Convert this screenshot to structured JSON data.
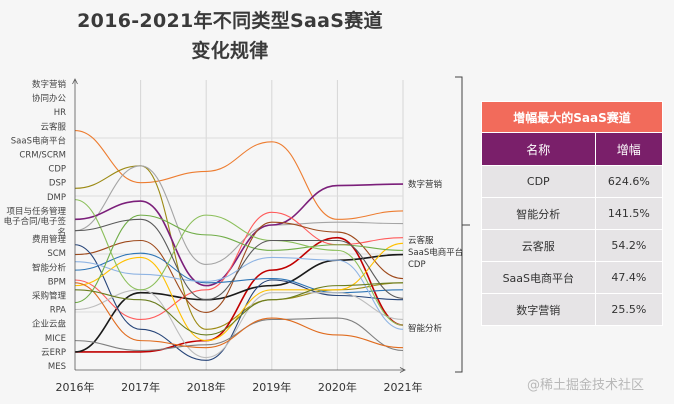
{
  "title": {
    "line1": "2016-2021年不同类型SaaS赛道",
    "line2": "变化规律"
  },
  "chart_data": {
    "type": "line",
    "smooth": true,
    "x": [
      "2016年",
      "2017年",
      "2018年",
      "2019年",
      "2020年",
      "2021年"
    ],
    "y_categories": [
      "数字营销",
      "协同办公",
      "HR",
      "云客服",
      "SaaS电商平台",
      "CRM/SCRM",
      "CDP",
      "DSP",
      "DMP",
      "项目与任务管理",
      "电子合同/电子签名",
      "费用管理",
      "SCM",
      "智能分析",
      "BPM",
      "采购管理",
      "RPA",
      "企业云盘",
      "MICE",
      "云ERP",
      "MES"
    ],
    "y_scale": "rank (1 = top category)",
    "grid": true,
    "end_labels": [
      "数字营销",
      "云客服",
      "SaaS电商平台",
      "CDP",
      "智能分析"
    ],
    "series": [
      {
        "color": "#ed7d31",
        "values": [
          4.3,
          8.0,
          7.2,
          5.1,
          10.6,
          10.0
        ]
      },
      {
        "color": "#9c8a14",
        "values": [
          8.4,
          6.8,
          18.4,
          16.3,
          15.6,
          15.1
        ]
      },
      {
        "color": "#a5a5a5",
        "values": [
          11.4,
          6.8,
          13.8,
          11.0,
          10.8,
          10.9
        ]
      },
      {
        "color": "#7b1f7a",
        "values": [
          10.6,
          9.3,
          15.3,
          11.0,
          8.2,
          8.1
        ]
      },
      {
        "color": "#c00000",
        "values": [
          20.0,
          20.0,
          19.2,
          14.2,
          11.9,
          18.1
        ]
      },
      {
        "color": "#1a1a1a",
        "values": [
          20.0,
          15.8,
          16.3,
          15.3,
          13.5,
          13.1
        ]
      },
      {
        "color": "#ff5b5b",
        "values": [
          14.9,
          17.7,
          15.6,
          10.1,
          12.4,
          11.9
        ]
      },
      {
        "color": "#9e4a1c",
        "values": [
          13.1,
          12.1,
          17.2,
          10.8,
          11.5,
          14.8
        ]
      },
      {
        "color": "#2e75b6",
        "values": [
          14.2,
          13.0,
          15.1,
          14.8,
          15.8,
          15.6
        ]
      },
      {
        "color": "#264478",
        "values": [
          12.4,
          18.4,
          20.6,
          14.9,
          16.0,
          16.3
        ]
      },
      {
        "color": "#ffc000",
        "values": [
          15.3,
          13.3,
          19.2,
          15.6,
          15.6,
          12.3
        ]
      },
      {
        "color": "#8fb4e3",
        "values": [
          13.6,
          14.5,
          15.0,
          13.3,
          13.5,
          18.4
        ]
      },
      {
        "color": "#bdbdbd",
        "values": [
          17.0,
          15.6,
          20.4,
          15.8,
          15.8,
          17.7
        ]
      },
      {
        "color": "#7f7f7f",
        "values": [
          19.2,
          19.9,
          19.5,
          17.7,
          17.6,
          19.9
        ]
      },
      {
        "color": "#e06c1f",
        "values": [
          15.1,
          19.2,
          19.7,
          17.6,
          18.8,
          19.7
        ]
      },
      {
        "color": "#70ad47",
        "values": [
          16.5,
          10.3,
          11.7,
          12.8,
          12.4,
          12.8
        ]
      },
      {
        "color": "#8bbf5a",
        "values": [
          9.2,
          15.6,
          10.3,
          12.1,
          12.8,
          18.1
        ]
      },
      {
        "color": "#595959",
        "values": [
          11.4,
          10.6,
          16.3,
          12.1,
          12.1,
          16.2
        ]
      },
      {
        "color": "#6b7d1f",
        "values": [
          15.6,
          16.3,
          18.8,
          16.3,
          15.3,
          15.1
        ]
      }
    ]
  },
  "table": {
    "title": "增幅最大的SaaS赛道",
    "headers": [
      "名称",
      "增幅"
    ],
    "rows": [
      [
        "CDP",
        "624.6%"
      ],
      [
        "智能分析",
        "141.5%"
      ],
      [
        "云客服",
        "54.2%"
      ],
      [
        "SaaS电商平台",
        "47.4%"
      ],
      [
        "数字营销",
        "25.5%"
      ]
    ],
    "colors": {
      "title_bg": "#f26b5b",
      "header_bg": "#7a1f6a",
      "row_bg": "#e6e4e6"
    }
  },
  "watermark": "@稀土掘金技术社区"
}
